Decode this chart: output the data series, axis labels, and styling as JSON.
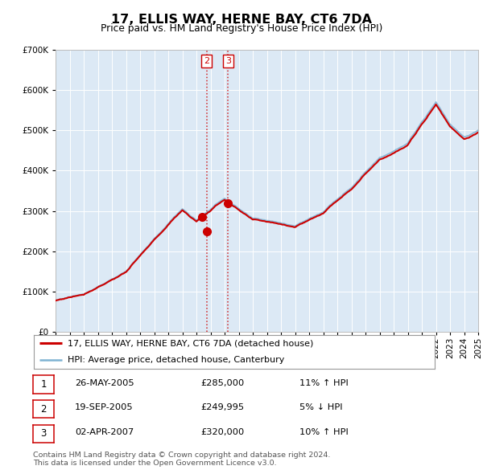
{
  "title": "17, ELLIS WAY, HERNE BAY, CT6 7DA",
  "subtitle": "Price paid vs. HM Land Registry's House Price Index (HPI)",
  "background_color": "#dce9f5",
  "red_line_color": "#cc0000",
  "blue_line_color": "#7fb3d3",
  "ylim": [
    0,
    700000
  ],
  "yticks": [
    0,
    100000,
    200000,
    300000,
    400000,
    500000,
    600000,
    700000
  ],
  "x_start_year": 1995,
  "x_end_year": 2025,
  "sale_times": [
    2005.397,
    2005.715,
    2007.249
  ],
  "sale_prices": [
    285000,
    249995,
    320000
  ],
  "sale_labels": [
    "1",
    "2",
    "3"
  ],
  "vline_sales": [
    1,
    2
  ],
  "legend_entries": [
    {
      "label": "17, ELLIS WAY, HERNE BAY, CT6 7DA (detached house)",
      "color": "#cc0000",
      "lw": 2.0
    },
    {
      "label": "HPI: Average price, detached house, Canterbury",
      "color": "#7fb3d3",
      "lw": 1.5
    }
  ],
  "table_rows": [
    {
      "num": "1",
      "date": "26-MAY-2005",
      "price": "£285,000",
      "hpi": "11% ↑ HPI"
    },
    {
      "num": "2",
      "date": "19-SEP-2005",
      "price": "£249,995",
      "hpi": "5% ↓ HPI"
    },
    {
      "num": "3",
      "date": "02-APR-2007",
      "price": "£320,000",
      "hpi": "10% ↑ HPI"
    }
  ],
  "footer": "Contains HM Land Registry data © Crown copyright and database right 2024.\nThis data is licensed under the Open Government Licence v3.0."
}
